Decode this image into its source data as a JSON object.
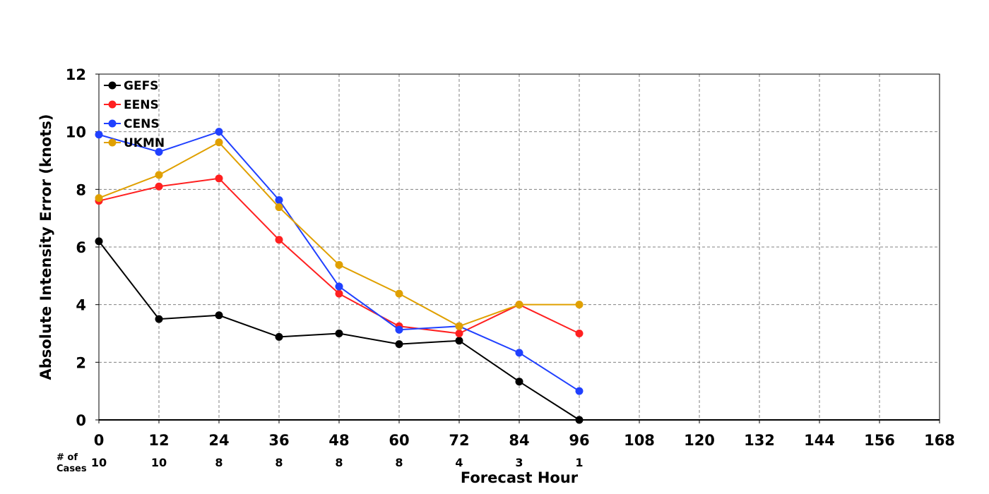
{
  "chart_data": {
    "type": "line",
    "xlabel": "Forecast Hour",
    "ylabel": "Absolute Intensity Error (knots)",
    "xlim": [
      0,
      168
    ],
    "ylim": [
      0,
      12
    ],
    "xticks": [
      0,
      12,
      24,
      36,
      48,
      60,
      72,
      84,
      96,
      108,
      120,
      132,
      144,
      156,
      168
    ],
    "yticks": [
      0,
      2,
      4,
      6,
      8,
      10,
      12
    ],
    "grid": true,
    "legend_position": "top-left",
    "cases_label_line1": "# of",
    "cases_label_line2": "Cases",
    "cases": [
      {
        "x": 0,
        "n": "10"
      },
      {
        "x": 12,
        "n": "10"
      },
      {
        "x": 24,
        "n": "8"
      },
      {
        "x": 36,
        "n": "8"
      },
      {
        "x": 48,
        "n": "8"
      },
      {
        "x": 60,
        "n": "8"
      },
      {
        "x": 72,
        "n": "4"
      },
      {
        "x": 84,
        "n": "3"
      },
      {
        "x": 96,
        "n": "1"
      }
    ],
    "series": [
      {
        "name": "GEFS",
        "color": "#000000",
        "x": [
          0,
          12,
          24,
          36,
          48,
          60,
          72,
          84,
          96
        ],
        "values": [
          6.2,
          3.5,
          3.63,
          2.88,
          3.0,
          2.63,
          2.75,
          1.33,
          0.0
        ]
      },
      {
        "name": "EENS",
        "color": "#ff2020",
        "x": [
          0,
          12,
          24,
          36,
          48,
          60,
          72,
          84,
          96
        ],
        "values": [
          7.6,
          8.1,
          8.38,
          6.25,
          4.38,
          3.25,
          3.0,
          4.0,
          3.0
        ]
      },
      {
        "name": "CENS",
        "color": "#2040ff",
        "x": [
          0,
          12,
          24,
          36,
          48,
          60,
          72,
          84,
          96
        ],
        "values": [
          9.9,
          9.3,
          10.0,
          7.63,
          4.63,
          3.13,
          3.25,
          2.33,
          1.0
        ]
      },
      {
        "name": "UKMN",
        "color": "#e0a000",
        "x": [
          0,
          12,
          24,
          36,
          48,
          60,
          72,
          84,
          96
        ],
        "values": [
          7.7,
          8.5,
          9.63,
          7.38,
          5.38,
          4.38,
          3.25,
          4.0,
          4.0
        ]
      }
    ]
  }
}
